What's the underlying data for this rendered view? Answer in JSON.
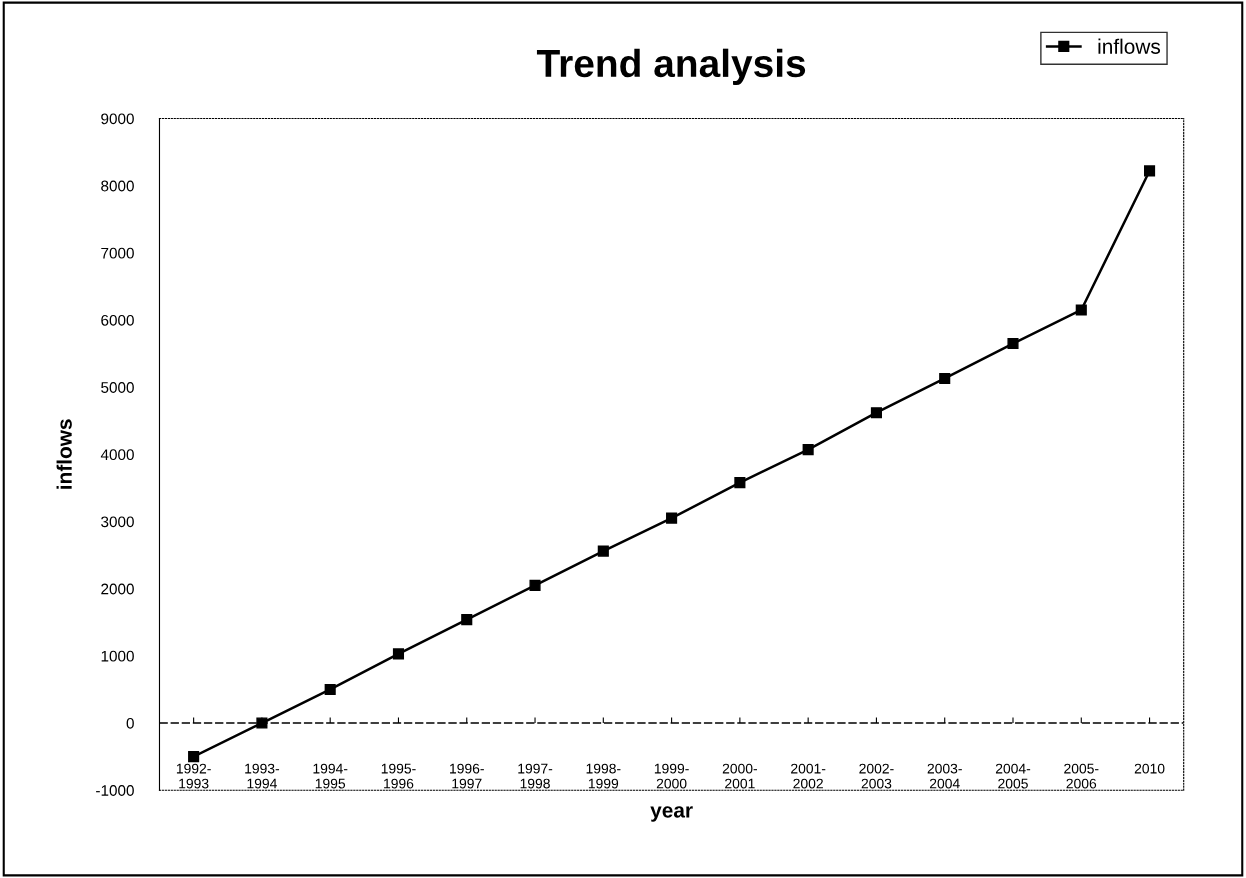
{
  "chart_data": {
    "type": "line",
    "title": "Trend analysis",
    "xlabel": "year",
    "ylabel": "inflows",
    "categories": [
      "1992-\n1993",
      "1993-\n1994",
      "1994-\n1995",
      "1995-\n1996",
      "1996-\n1997",
      "1997-\n1998",
      "1998-\n1999",
      "1999-\n2000",
      "2000-\n2001",
      "2001-\n2002",
      "2002-\n2003",
      "2003-\n2004",
      "2004-\n2005",
      "2005-\n2006",
      "2010"
    ],
    "series": [
      {
        "name": "inflows",
        "color": "#000000",
        "values": [
          -500,
          0,
          500,
          1030,
          1540,
          2050,
          2560,
          3050,
          3580,
          4070,
          4620,
          5130,
          5650,
          6150,
          8220
        ]
      }
    ],
    "ylim": [
      -1000,
      9000
    ],
    "yticks": [
      -1000,
      0,
      1000,
      2000,
      3000,
      4000,
      5000,
      6000,
      7000,
      8000,
      9000
    ],
    "ref_lines": [
      {
        "axis": "y",
        "value": 0,
        "color": "#000000",
        "line_style": "dashed"
      }
    ],
    "grid": false,
    "legend": "top right",
    "marker": "square",
    "line_style": "solid"
  }
}
